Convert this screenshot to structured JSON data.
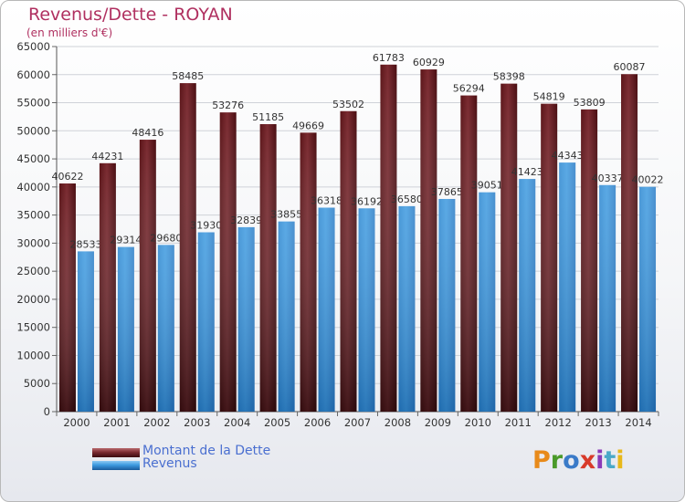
{
  "header": {
    "title": "Revenus/Dette - ROYAN",
    "subtitle": "(en milliers d'€)"
  },
  "legend": {
    "dette_label": "Montant de la Dette",
    "revenus_label": "Revenus"
  },
  "brand": {
    "logo_text": "Proxiti"
  },
  "colors": {
    "dette": "#7a2a30",
    "revenus": "#3d9ae0",
    "title": "#b03060",
    "legend_text": "#4a6fd0"
  },
  "chart_data": {
    "type": "bar",
    "title": "Revenus/Dette - ROYAN",
    "subtitle": "(en milliers d'€)",
    "categories": [
      "2000",
      "2001",
      "2002",
      "2003",
      "2004",
      "2005",
      "2006",
      "2007",
      "2008",
      "2009",
      "2010",
      "2011",
      "2012",
      "2013",
      "2014"
    ],
    "series": [
      {
        "name": "Montant de la Dette",
        "values": [
          40622,
          44231,
          48416,
          58485,
          53276,
          51185,
          49669,
          53502,
          61783,
          60929,
          56294,
          58398,
          54819,
          53809,
          60087
        ]
      },
      {
        "name": "Revenus",
        "values": [
          28533,
          29314,
          29680,
          31930,
          32839,
          33855,
          36318,
          36192,
          36580,
          37865,
          39051,
          41423,
          44343,
          40337,
          40022
        ]
      }
    ],
    "ylim": [
      0,
      65000
    ],
    "yticks": [
      0,
      5000,
      10000,
      15000,
      20000,
      25000,
      30000,
      35000,
      40000,
      45000,
      50000,
      55000,
      60000,
      65000
    ],
    "grid": true,
    "legend_position": "bottom-left"
  }
}
